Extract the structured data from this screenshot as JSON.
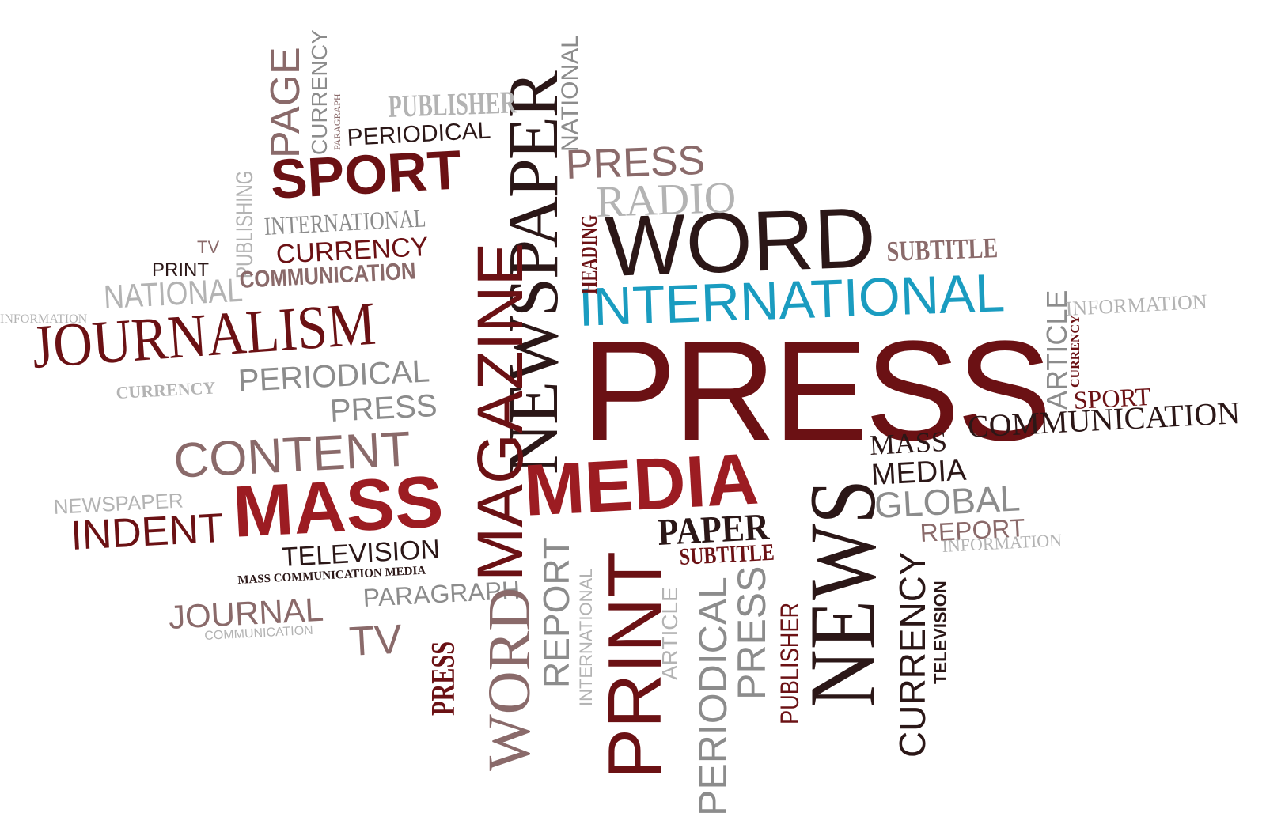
{
  "colors": {
    "dark_red": "#6b1114",
    "red": "#9c1c22",
    "dark_brown": "#2b1717",
    "mauve": "#8a6a6a",
    "gray": "#8c8c8c",
    "light_gray": "#b3b3b3",
    "teal": "#1a9cc0"
  },
  "words": {
    "press_big": "PRESS",
    "newspaper_vertical": "NEWSPAPER",
    "journalism": "JOURNALISM",
    "mass": "MASS",
    "media_big": "MEDIA",
    "word_big": "WORD",
    "international_teal": "INTERNATIONAL",
    "news_vertical": "NEWS",
    "print_vertical": "PRINT",
    "magazine_vertical": "MAGAZINE",
    "sport_top": "SPORT",
    "content": "CONTENT",
    "indent": "INDENT",
    "press_upper": "PRESS",
    "radio": "RADIO",
    "page_vertical": "PAGE",
    "currency_top_vertical": "CURRENCY",
    "paragraph_small_vertical": "PARAGRAPH",
    "publisher_top": "PUBLISHER",
    "periodical_top": "PERIODICAL",
    "national_top_vertical": "NATIONAL",
    "heading_vertical": "HEADING",
    "subtitle_right": "SUBTITLE",
    "publishing_vertical": "PUBLISHING",
    "international_gray": "INTERNATIONAL",
    "currency_mid": "CURRENCY",
    "communication_mid": "COMMUNICATION",
    "tv_small": "TV",
    "print_small": "PRINT",
    "national_left": "NATIONAL",
    "information_left": "INFORMATION",
    "currency_left": "CURRENCY",
    "periodical_mid": "PERIODICAL",
    "press_mid": "PRESS",
    "newspaper_small": "NEWSPAPER",
    "television_mid": "TELEVISION",
    "mass_communication_media": "MASS COMMUNICATION MEDIA",
    "journal": "JOURNAL",
    "communication_small": "COMMUNICATION",
    "paragraph_mid": "PARAGRAPH",
    "tv_mid": "TV",
    "press_vertical_small": "PRESS",
    "word_vertical": "WORD",
    "report_vertical": "REPORT",
    "international_vertical": "INTERNATIONAL",
    "paper": "PAPER",
    "subtitle_mid": "SUBTITLE",
    "article_vertical_mid": "ARTICLE",
    "periodical_vertical": "PERIODICAL",
    "press_vertical_gray": "PRESS",
    "publisher_vertical": "PUBLISHER",
    "mass_right": "MASS",
    "communication_right": "COMMUNICATION",
    "media_right": "MEDIA",
    "global": "GLOBAL",
    "report_right": "REPORT",
    "information_right_low": "INFORMATION",
    "currency_vertical_right": "CURRENCY",
    "television_vertical": "TELEVISION",
    "article_vertical_right": "ARTICLE",
    "currency_tiny_vertical": "CURRENCY",
    "information_right_top": "INFORMATION",
    "sport_right": "SPORT"
  }
}
